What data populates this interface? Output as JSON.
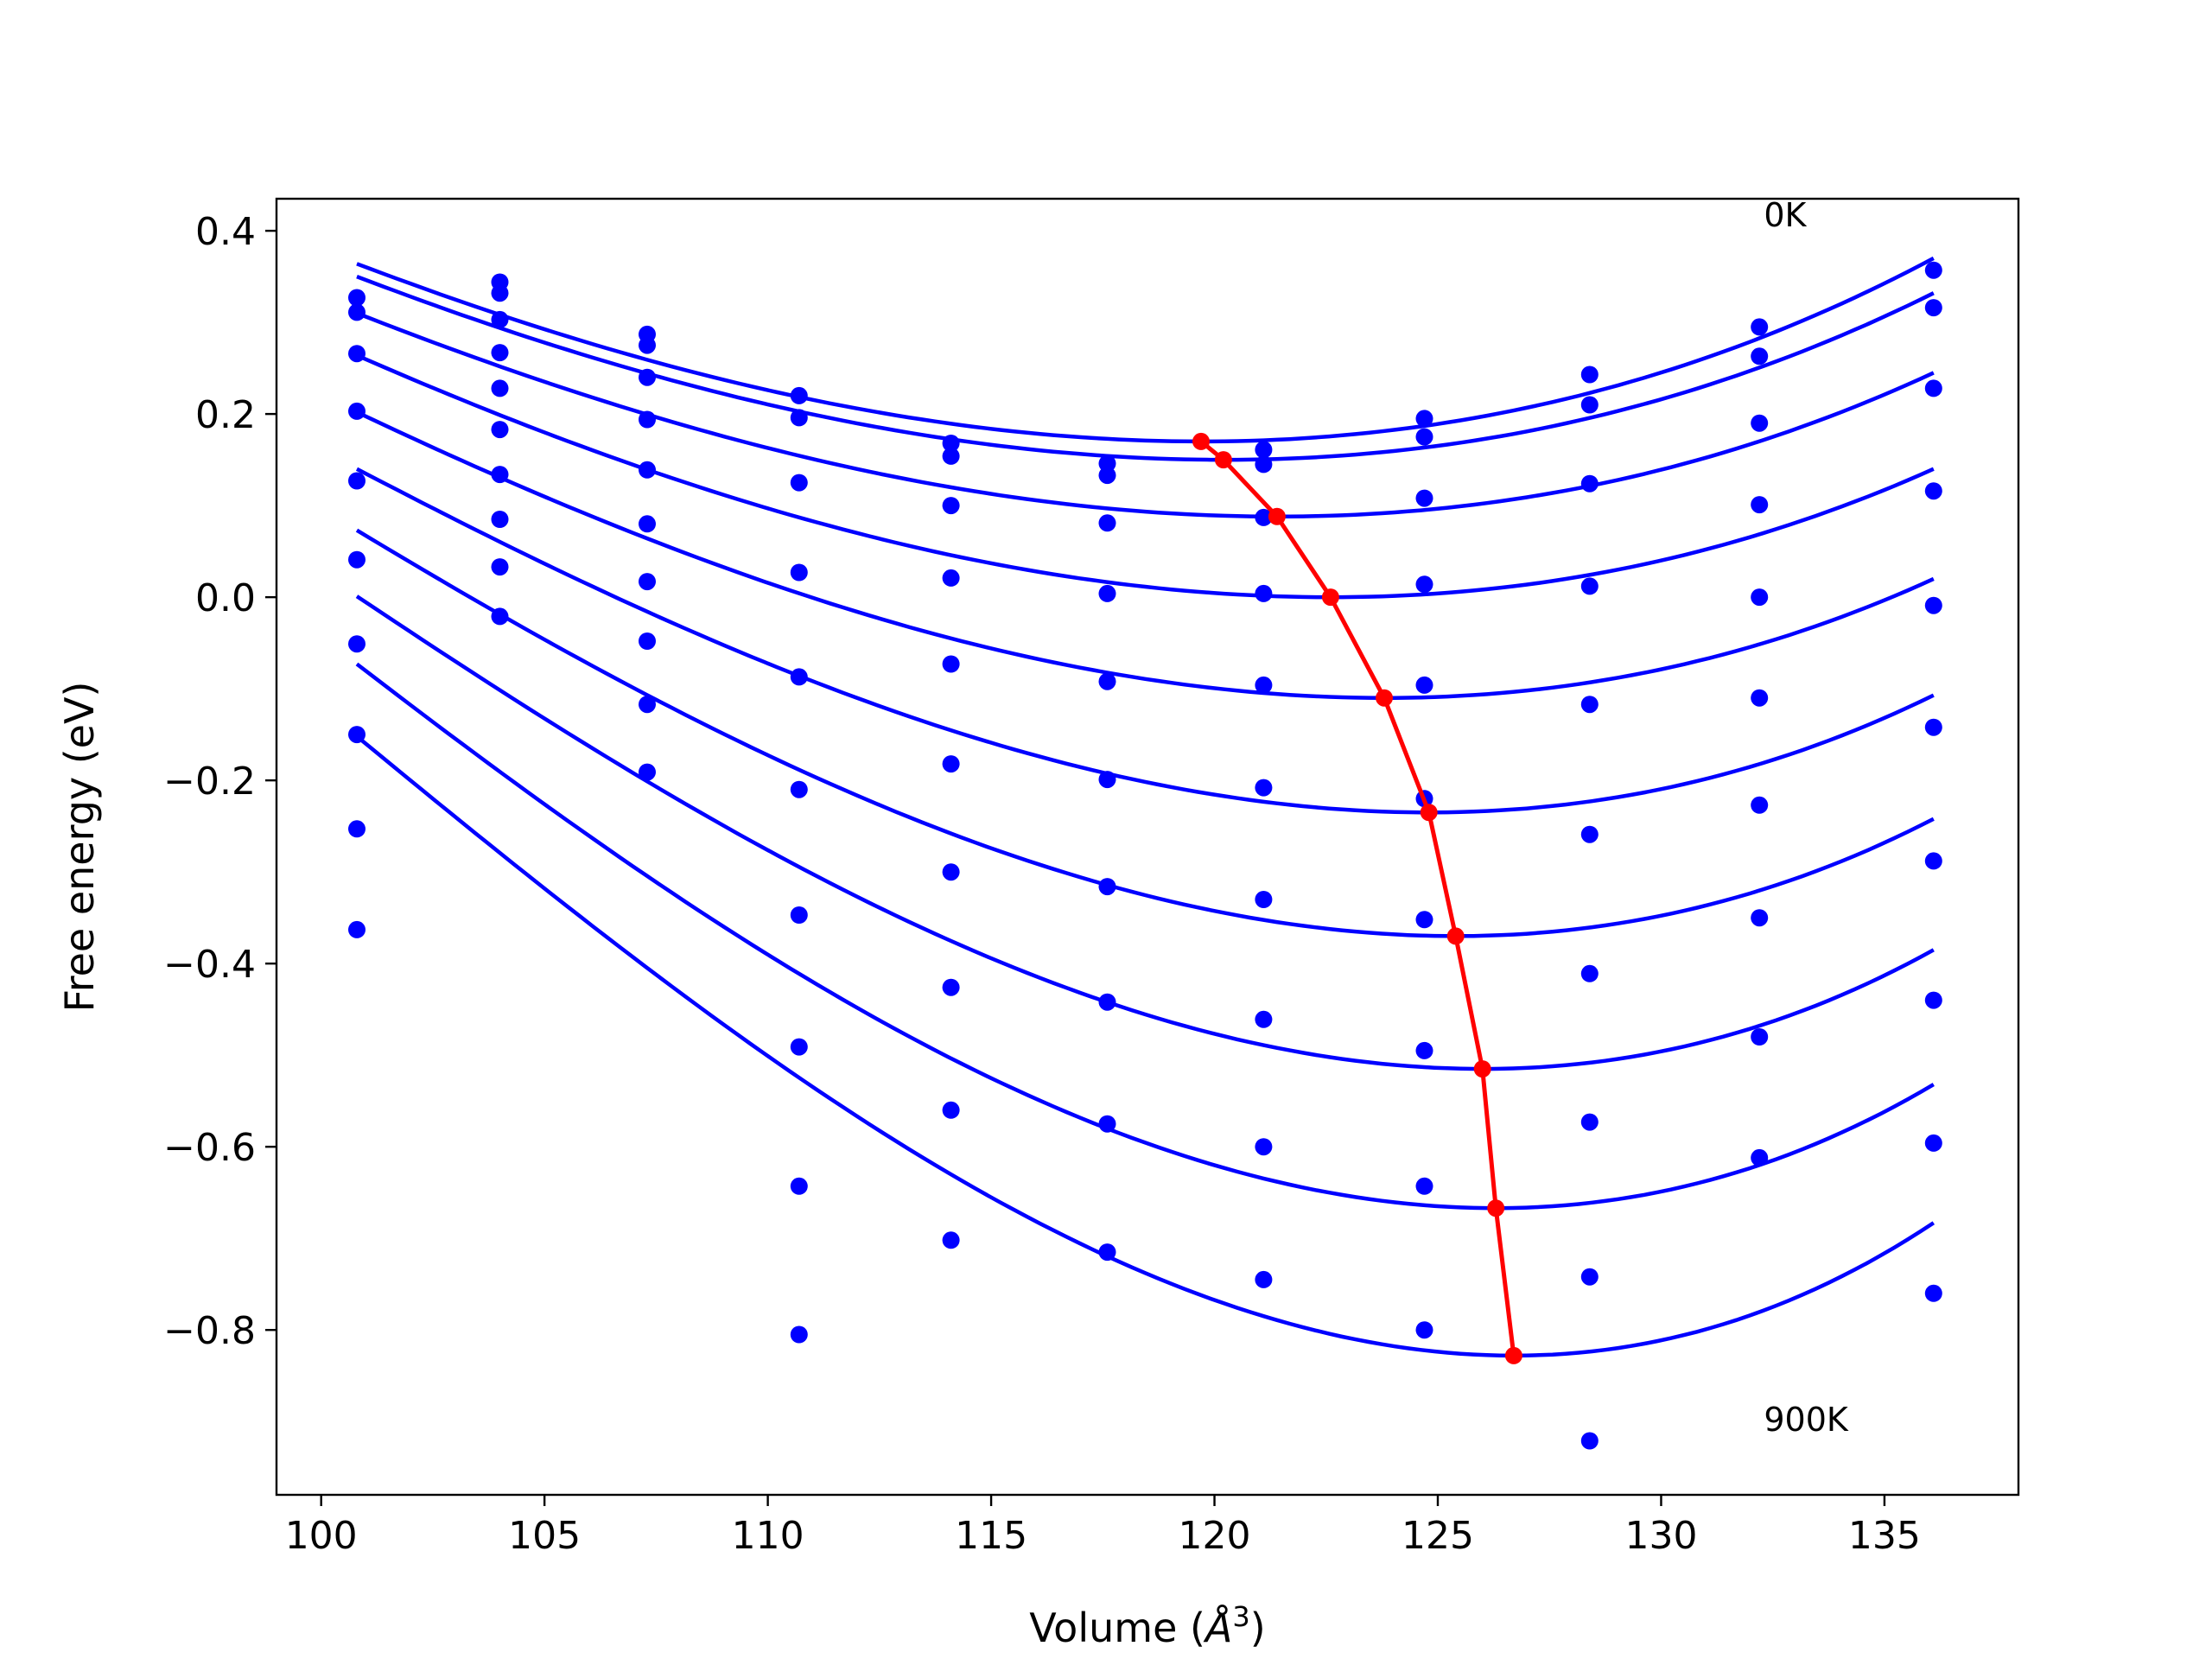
{
  "chart_data": {
    "type": "scatter",
    "xlabel": "Volume ($\\AA^3$)",
    "xlabel_parts": {
      "prefix": "Volume (",
      "unit_base": "Å",
      "unit_exp": "3",
      "suffix": ")"
    },
    "ylabel": "Free energy (eV)",
    "xlim": [
      99.0,
      138.0
    ],
    "ylim": [
      -0.98,
      0.435
    ],
    "xticks": [
      100,
      105,
      110,
      115,
      120,
      125,
      130,
      135
    ],
    "xtick_labels": [
      "100",
      "105",
      "110",
      "115",
      "120",
      "125",
      "130",
      "135"
    ],
    "yticks": [
      0.4,
      0.2,
      0.0,
      -0.2,
      -0.4,
      -0.6,
      -0.8
    ],
    "ytick_labels": [
      "0.4",
      "0.2",
      "0.0",
      "−0.2",
      "−0.4",
      "−0.6",
      "−0.8"
    ],
    "annotations": [
      {
        "text": "0K",
        "x": 132.3,
        "y": 0.405
      },
      {
        "text": "900K",
        "x": 132.3,
        "y": -0.91
      }
    ],
    "grid": false,
    "colors": {
      "points": "#0000ff",
      "curves": "#0000ff",
      "minimum_path": "#ff0000"
    },
    "volumes": [
      100.8,
      104.0,
      107.3,
      110.7,
      114.1,
      117.6,
      121.1,
      124.7,
      128.4,
      132.2,
      136.1
    ],
    "series": [
      {
        "points": [
          0.327,
          0.344,
          0.287,
          0.22,
          0.168,
          0.146,
          0.161,
          0.195,
          0.243,
          0.295,
          0.357
        ],
        "fit": {
          "min_x": 119.7,
          "min_y": 0.17,
          "left_y": 0.364,
          "right_y": 0.37
        }
      },
      {
        "points": [
          0.311,
          0.332,
          0.275,
          0.196,
          0.154,
          0.133,
          0.145,
          0.175,
          0.21,
          0.263,
          0.316
        ],
        "fit": {
          "min_x": 120.2,
          "min_y": 0.15,
          "left_y": 0.35,
          "right_y": 0.332
        }
      },
      {
        "points": [
          0.266,
          0.303,
          0.24,
          0.125,
          0.1,
          0.081,
          0.087,
          0.108,
          0.124,
          0.19,
          0.228
        ],
        "fit": {
          "min_x": 121.4,
          "min_y": 0.088,
          "left_y": 0.31,
          "right_y": 0.245
        }
      },
      {
        "points": [
          0.203,
          0.267,
          0.194,
          0.027,
          0.021,
          0.004,
          0.004,
          0.014,
          0.012,
          0.101,
          0.116
        ],
        "fit": {
          "min_x": 122.6,
          "min_y": 0.0,
          "left_y": 0.264,
          "right_y": 0.14
        }
      },
      {
        "points": [
          0.127,
          0.228,
          0.139,
          -0.087,
          -0.073,
          -0.092,
          -0.096,
          -0.096,
          -0.117,
          0.0,
          -0.009
        ],
        "fit": {
          "min_x": 123.8,
          "min_y": -0.11,
          "left_y": 0.202,
          "right_y": 0.02
        }
      },
      {
        "points": [
          0.041,
          0.183,
          0.08,
          -0.21,
          -0.182,
          -0.199,
          -0.208,
          -0.22,
          -0.259,
          -0.11,
          -0.142
        ],
        "fit": {
          "min_x": 124.8,
          "min_y": -0.235,
          "left_y": 0.14,
          "right_y": -0.107
        }
      },
      {
        "points": [
          -0.051,
          0.134,
          0.017,
          -0.347,
          -0.3,
          -0.316,
          -0.33,
          -0.352,
          -0.411,
          -0.227,
          -0.288
        ],
        "fit": {
          "min_x": 125.4,
          "min_y": -0.37,
          "left_y": 0.073,
          "right_y": -0.242
        }
      },
      {
        "points": [
          -0.15,
          0.085,
          -0.048,
          -0.491,
          -0.426,
          -0.442,
          -0.461,
          -0.495,
          -0.573,
          -0.35,
          -0.44
        ],
        "fit": {
          "min_x": 126.0,
          "min_y": -0.515,
          "left_y": 0.001,
          "right_y": -0.385
        }
      },
      {
        "points": [
          -0.253,
          0.033,
          -0.117,
          -0.643,
          -0.56,
          -0.575,
          -0.6,
          -0.643,
          -0.742,
          -0.48,
          -0.596
        ],
        "fit": {
          "min_x": 126.3,
          "min_y": -0.667,
          "left_y": -0.073,
          "right_y": -0.532
        }
      },
      {
        "points": [
          -0.363,
          -0.021,
          -0.191,
          -0.805,
          -0.702,
          -0.715,
          -0.745,
          -0.8,
          -0.921,
          -0.612,
          -0.76
        ],
        "fit": {
          "min_x": 126.7,
          "min_y": -0.828,
          "left_y": -0.152,
          "right_y": -0.683
        }
      }
    ],
    "minimum_path": {
      "x": [
        119.7,
        120.2,
        121.4,
        122.6,
        123.8,
        124.8,
        125.4,
        126.0,
        126.3,
        126.7
      ],
      "y": [
        0.17,
        0.15,
        0.088,
        0.0,
        -0.11,
        -0.235,
        -0.37,
        -0.515,
        -0.667,
        -0.828
      ]
    }
  }
}
